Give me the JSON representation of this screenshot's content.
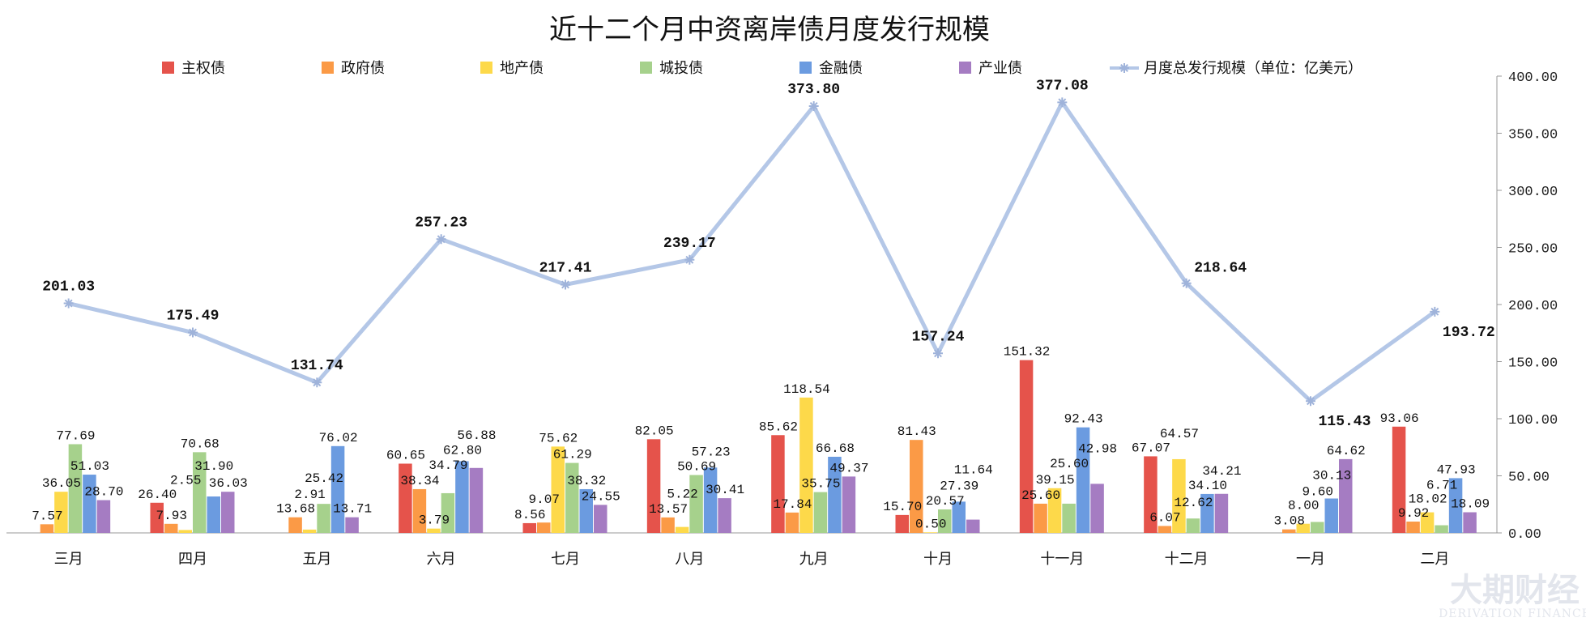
{
  "chart_data": {
    "type": "bar",
    "title": "近十二个月中资离岸债月度发行规模",
    "categories": [
      "三月",
      "四月",
      "五月",
      "六月",
      "七月",
      "八月",
      "九月",
      "十月",
      "十一月",
      "十二月",
      "一月",
      "二月"
    ],
    "series": [
      {
        "name": "主权债",
        "color": "#e5534b",
        "values": [
          0,
          26.4,
          0,
          60.65,
          8.56,
          82.05,
          85.62,
          15.7,
          151.32,
          67.07,
          0,
          93.06
        ]
      },
      {
        "name": "政府债",
        "color": "#fb9a46",
        "values": [
          7.57,
          7.93,
          13.68,
          38.34,
          9.07,
          13.57,
          17.84,
          81.43,
          25.6,
          6.07,
          3.08,
          9.92
        ]
      },
      {
        "name": "地产债",
        "color": "#fdd94a",
        "values": [
          36.05,
          2.55,
          2.91,
          3.79,
          75.62,
          5.22,
          118.54,
          0.5,
          39.15,
          64.57,
          8.0,
          18.02
        ]
      },
      {
        "name": "城投债",
        "color": "#a6d18c",
        "values": [
          77.69,
          70.68,
          25.42,
          34.79,
          61.29,
          50.69,
          35.75,
          20.57,
          25.6,
          12.62,
          9.6,
          6.71
        ]
      },
      {
        "name": "金融债",
        "color": "#6b9be0",
        "values": [
          51.03,
          31.9,
          76.02,
          62.8,
          38.32,
          57.23,
          66.68,
          27.39,
          92.43,
          34.1,
          30.13,
          47.93
        ]
      },
      {
        "name": "产业债",
        "color": "#a57cc2",
        "values": [
          28.7,
          36.03,
          13.71,
          56.88,
          24.55,
          30.41,
          49.37,
          11.64,
          42.98,
          34.21,
          64.62,
          18.09
        ]
      }
    ],
    "line": {
      "name": "月度总发行规模（单位：亿美元）",
      "color": "#b4c7e7",
      "type": "line",
      "values": [
        201.03,
        175.49,
        131.74,
        257.23,
        217.41,
        239.17,
        373.8,
        157.24,
        377.08,
        218.64,
        115.43,
        193.72
      ]
    },
    "y_axis": {
      "position": "right",
      "ylim": [
        0,
        400
      ],
      "ticks": [
        "0.00",
        "50.00",
        "100.00",
        "150.00",
        "200.00",
        "250.00",
        "300.00",
        "350.00",
        "400.00"
      ]
    },
    "grid": false,
    "legend": "top"
  },
  "watermark": {
    "text_cn": "大期财经",
    "text_en": "DERIVATION FINANCE"
  }
}
